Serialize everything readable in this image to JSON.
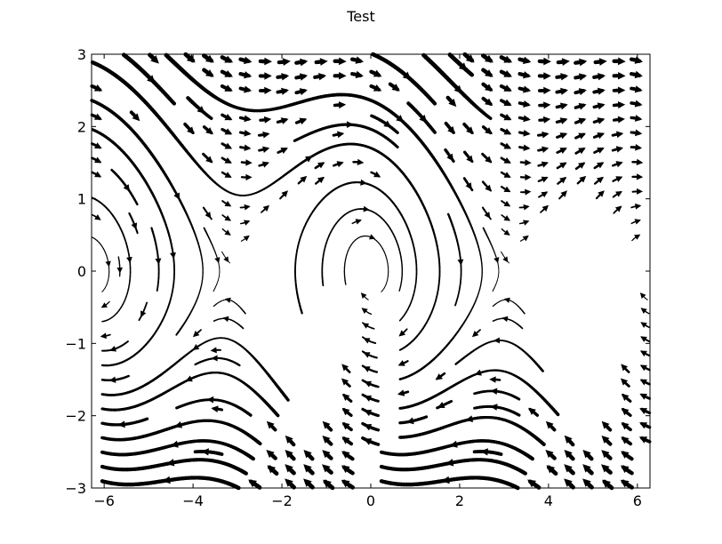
{
  "chart_data": {
    "type": "streamplot",
    "title": "Test",
    "xlabel": "",
    "ylabel": "",
    "xlim": [
      -6.2832,
      6.2832
    ],
    "ylim": [
      -3,
      3
    ],
    "x_ticks": [
      -6,
      -4,
      -2,
      0,
      2,
      4,
      6
    ],
    "y_ticks": [
      -3,
      -2,
      -1,
      0,
      1,
      2,
      3
    ],
    "x_tick_labels": [
      "−6",
      "−4",
      "−2",
      "0",
      "2",
      "4",
      "6"
    ],
    "y_tick_labels": [
      "−3",
      "−2",
      "−1",
      "0",
      "1",
      "2",
      "3"
    ],
    "grid": false,
    "color": "#000000",
    "field": {
      "u": "y",
      "v": "-sin(x) - 0.25*y",
      "description": "damped pendulum phase portrait"
    },
    "linewidth_scale": "proportional to speed"
  }
}
